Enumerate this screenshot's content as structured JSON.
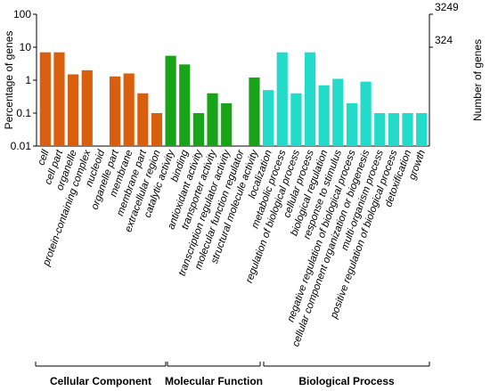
{
  "chart_data": {
    "type": "bar",
    "ylabel_left": "Percentage of genes",
    "ylabel_right": "Number of genes",
    "y_scale": "log",
    "ylim": [
      0.01,
      100
    ],
    "left_ticks": [
      "100",
      "10",
      "1",
      "0.1",
      "0.01"
    ],
    "right_ticks": [
      "3249",
      "324"
    ],
    "grid": false,
    "groups": [
      {
        "name": "Cellular Component",
        "color": "#d95f0e",
        "categories": [
          "cell",
          "cell part",
          "organelle",
          "protein-containing complex",
          "nucleoid",
          "organelle part",
          "membrane",
          "membrane part",
          "extracellular region"
        ],
        "values": [
          7,
          7,
          1.5,
          2,
          null,
          1.3,
          1.6,
          0.4,
          0.1
        ]
      },
      {
        "name": "Molecular Function",
        "color": "#19a319",
        "categories": [
          "catalytic activity",
          "binding",
          "antioxidant activity",
          "transporter activity",
          "transcription regulator activity",
          "molecular function regulator",
          "structural molecule activity"
        ],
        "values": [
          5.5,
          3,
          0.1,
          0.4,
          0.2,
          null,
          1.2
        ]
      },
      {
        "name": "Biological Process",
        "color": "#22dbc8",
        "categories": [
          "localization",
          "metabolic process",
          "regulation of biological process",
          "cellular process",
          "biological regulation",
          "response to stimulus",
          "negative regulation of biological process",
          "cellular component organization or biogenesis",
          "multi-organism process",
          "positive regulation of biological process",
          "detoxification",
          "growth"
        ],
        "values": [
          0.5,
          7,
          0.4,
          7,
          0.7,
          1.1,
          0.2,
          0.9,
          0.1,
          0.1,
          0.1,
          0.1
        ]
      }
    ]
  }
}
